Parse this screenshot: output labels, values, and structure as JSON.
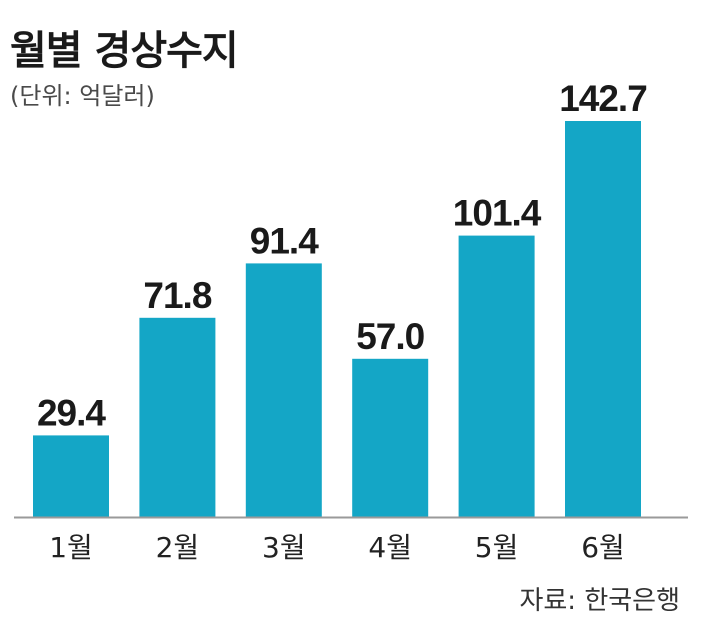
{
  "title": "월별 경상수지",
  "unit_note": "(단위: 억달러)",
  "source": "자료: 한국은행",
  "colors": {
    "bar": "#14a6c6",
    "baseline": "#9a9a9a"
  },
  "chart_data": {
    "type": "bar",
    "title": "월별 경상수지",
    "subtitle": "(단위: 억달러)",
    "categories": [
      "1월",
      "2월",
      "3월",
      "4월",
      "5월",
      "6월"
    ],
    "values": [
      29.4,
      71.8,
      91.4,
      57.0,
      101.4,
      142.7
    ],
    "value_labels": [
      "29.4",
      "71.8",
      "91.4",
      "57.0",
      "101.4",
      "142.7"
    ],
    "xlabel": "",
    "ylabel": "",
    "ylim": [
      0,
      142.7
    ],
    "grid": false,
    "legend": "none"
  }
}
